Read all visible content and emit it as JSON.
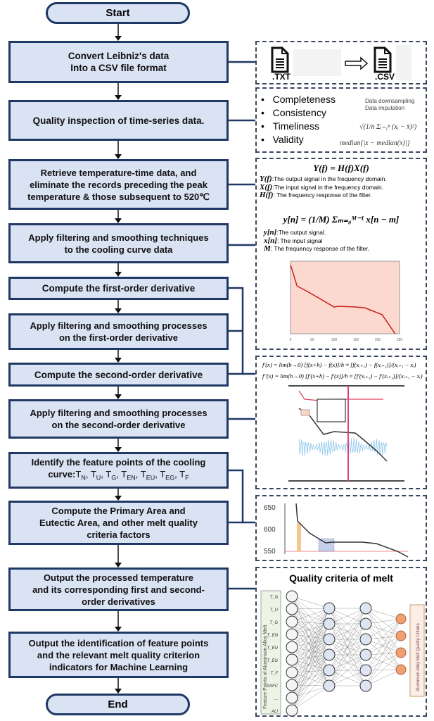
{
  "flow": {
    "start": "Start",
    "end": "End",
    "steps": [
      {
        "line1": "Convert Leibniz's data",
        "line2": "Into a CSV file format"
      },
      {
        "line1": "Quality inspection of time-series data."
      },
      {
        "line1": "Retrieve temperature-time data, and",
        "line2": "eliminate the records preceding the peak",
        "line3": "temperature & those subsequent to 520℃"
      },
      {
        "line1": "Apply filtering and smoothing techniques",
        "line2": "to the cooling curve data"
      },
      {
        "line1": "Compute the first-order derivative"
      },
      {
        "line1": "Apply filtering and smoothing processes",
        "line2": "on the first-order derivative"
      },
      {
        "line1": "Compute the second-order derivative"
      },
      {
        "line1": "Apply filtering and smoothing processes",
        "line2": "on the second-order derivative"
      },
      {
        "line1": "Identify the feature points of the cooling",
        "line2": "curve:",
        "subs": [
          "N",
          "U",
          "G",
          "EN",
          "EU",
          "EG",
          "F"
        ]
      },
      {
        "line1": "Compute the Primary Area and",
        "line2": "Eutectic Area, and other melt quality",
        "line3": "criteria factors"
      },
      {
        "line1": "Output the processed temperature",
        "line2": "and its corresponding first and second-",
        "line3": "order derivatives"
      },
      {
        "line1": "Output the identification of feature points",
        "line2": "and the relevant melt quality criterion",
        "line3": "indicators for Machine Learning"
      }
    ]
  },
  "panels": {
    "conversion": {
      "from_label": ".TXT",
      "to_label": ".CSV",
      "icons": [
        "document-icon",
        "right-arrow-icon"
      ]
    },
    "quality": {
      "items": [
        "Completeness",
        "Consistency",
        "Timeliness",
        "Validity"
      ],
      "notes": [
        "Data downsampling",
        "Data imputation"
      ],
      "formula_std": "√(1/n Σᵢ₌₁ⁿ (xᵢ − x̄)²)",
      "formula_mad": "median{|x − median(x)|}"
    },
    "filter": {
      "eq1": "Y(f) = H(f)X(f)",
      "defs1": [
        {
          "sym": "Y(f)",
          "text": ":The output signal in the frequency domain."
        },
        {
          "sym": "X(f)",
          "text": ":The input signal in the frequency domain."
        },
        {
          "sym": "H(f)",
          "text": ": The frequency response of the filter."
        }
      ],
      "eq2": "y[n] = (1/M) Σₘ₌₀ᴹ⁻¹ x[n − m]",
      "defs2": [
        {
          "sym": "y[n]",
          "text": ":The output signal."
        },
        {
          "sym": "x[n]",
          "text": ": The input signal"
        },
        {
          "sym": "M",
          "text": ": The frequency response of the filter."
        }
      ],
      "curve_x_ticks": [
        "0",
        "50",
        "100",
        "150",
        "200",
        "250"
      ],
      "curve_color": "#cc1f1f",
      "curve_bg": "#fbd9cf"
    },
    "derivative": {
      "eq1": "f′(x) = lim(h→0) [f(x+h) − f(x)]/h ≈ [f(xᵢ₊₁) − f(xᵢ₊₁)]/(xᵢ₊₁ − xᵢ)",
      "eq2": "f″(x) = lim(h→0) [f′(x+h) − f′(x)]/h ≈ [f′(xᵢ₊₁) − f′(xᵢ₊₁)]/(xᵢ₊₁ − xᵢ)",
      "colors": {
        "temperature": "#333333",
        "first": "#e0405a",
        "second": "#8ec8ec",
        "marker": "#e0407a"
      }
    },
    "areas": {
      "y_ticks": [
        "650",
        "600",
        "550"
      ],
      "primary_color": "#f0b060",
      "eutectic_color": "#9fb0dd"
    },
    "network": {
      "title": "Quality criteria of melt",
      "input_caption": "Feature Points of Aluminium Alloy Melt",
      "output_caption": "Aluminium Alloy Melt Quality Criteria",
      "inputs": [
        "T_N",
        "T_U",
        "T_G",
        "T_EN",
        "T_EU",
        "T_EG",
        "T_F",
        "SSFC",
        "...",
        "ALI"
      ],
      "output_color": "#f0a070",
      "hidden_color": "#dde4f2"
    }
  },
  "colors": {
    "box_fill": "#dae3f3",
    "box_border": "#1f3864",
    "connector": "#1f3864"
  }
}
